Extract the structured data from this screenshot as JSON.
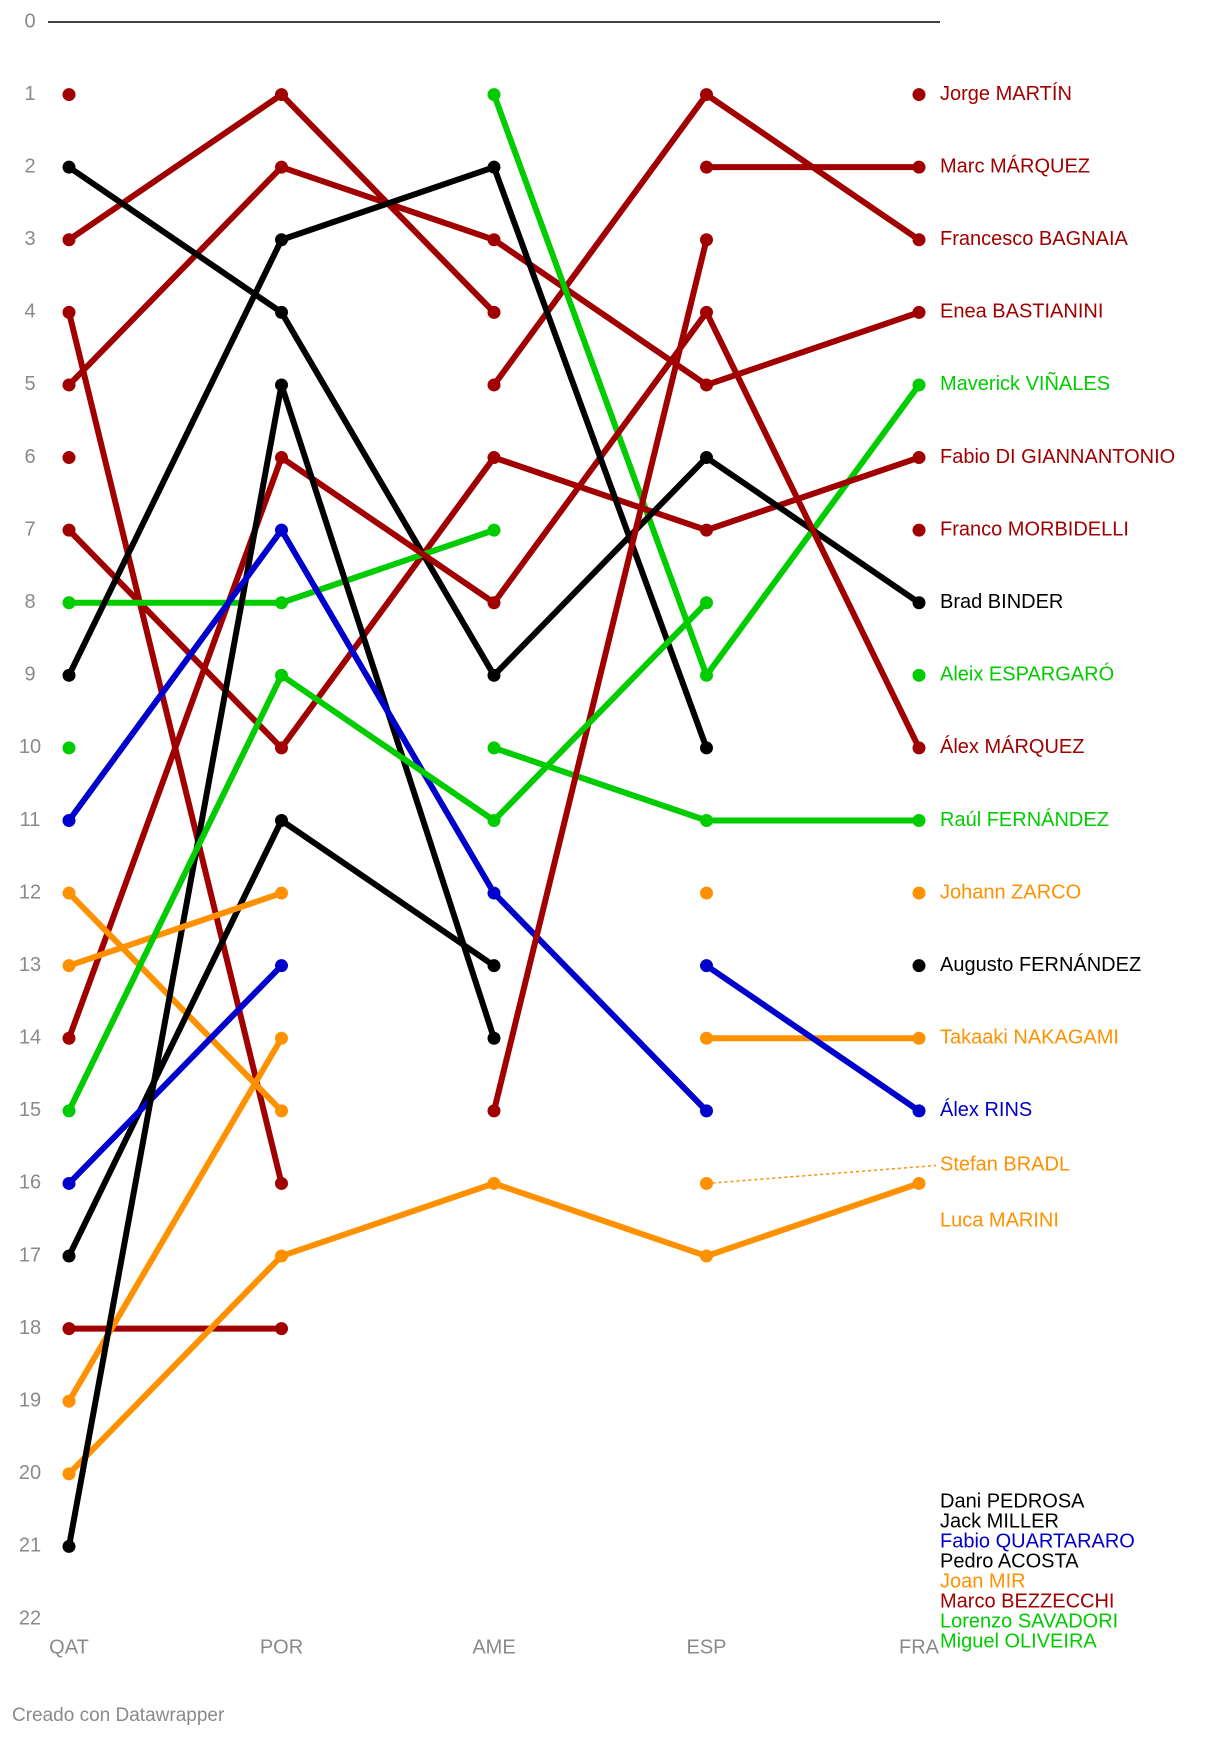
{
  "chart_data": {
    "type": "bump",
    "categories": [
      "QAT",
      "POR",
      "AME",
      "ESP",
      "FRA"
    ],
    "ylim": [
      0,
      22
    ],
    "yticks": [
      0,
      1,
      2,
      3,
      4,
      5,
      6,
      7,
      8,
      9,
      10,
      11,
      12,
      13,
      14,
      15,
      16,
      17,
      18,
      19,
      20,
      21,
      22
    ],
    "series": [
      {
        "name": "Jorge MARTÍN",
        "color": "#a00000",
        "values": [
          3,
          1,
          4,
          null,
          1
        ]
      },
      {
        "name": "Marc MÁRQUEZ",
        "color": "#a00000",
        "values": [
          4,
          16,
          null,
          2,
          2
        ]
      },
      {
        "name": "Francesco BAGNAIA",
        "color": "#a00000",
        "values": [
          1,
          null,
          5,
          1,
          3
        ]
      },
      {
        "name": "Enea BASTIANINI",
        "color": "#a00000",
        "values": [
          5,
          2,
          3,
          5,
          4
        ]
      },
      {
        "name": "Maverick VIÑALES",
        "color": "#00cc00",
        "values": [
          10,
          null,
          1,
          9,
          5
        ]
      },
      {
        "name": "Fabio DI GIANNANTONIO",
        "color": "#a00000",
        "values": [
          7,
          10,
          6,
          7,
          6
        ]
      },
      {
        "name": "Franco MORBIDELLI",
        "color": "#a00000",
        "values": [
          18,
          18,
          null,
          null,
          7
        ]
      },
      {
        "name": "Brad BINDER",
        "color": "#000000",
        "values": [
          2,
          4,
          9,
          6,
          8
        ]
      },
      {
        "name": "Aleix ESPARGARÓ",
        "color": "#00cc00",
        "values": [
          8,
          8,
          7,
          null,
          9
        ]
      },
      {
        "name": "Álex MÁRQUEZ",
        "color": "#a00000",
        "values": [
          14,
          6,
          8,
          4,
          10
        ]
      },
      {
        "name": "Raúl FERNÁNDEZ",
        "color": "#00cc00",
        "values": [
          null,
          null,
          10,
          11,
          11
        ]
      },
      {
        "name": "Johann ZARCO",
        "color": "#ff9100",
        "values": [
          12,
          15,
          null,
          null,
          12
        ]
      },
      {
        "name": "Augusto FERNÁNDEZ",
        "color": "#000000",
        "values": [
          17,
          11,
          13,
          null,
          13
        ]
      },
      {
        "name": "Takaaki NAKAGAMI",
        "color": "#ff9100",
        "values": [
          19,
          14,
          null,
          14,
          14
        ]
      },
      {
        "name": "Álex RINS",
        "color": "#0000cc",
        "values": [
          16,
          13,
          null,
          13,
          15
        ]
      },
      {
        "name": "Stefan BRADL",
        "color": "#ff9100",
        "values": [
          null,
          null,
          null,
          16,
          null
        ]
      },
      {
        "name": "Luca MARINI",
        "color": "#ff9100",
        "values": [
          20,
          17,
          16,
          17,
          16
        ]
      },
      {
        "name": "Dani PEDROSA",
        "color": "#000000",
        "values": [
          null,
          null,
          null,
          null,
          null
        ]
      },
      {
        "name": "Jack MILLER",
        "color": "#000000",
        "values": [
          21,
          5,
          14,
          null,
          null
        ]
      },
      {
        "name": "Fabio QUARTARARO",
        "color": "#0000cc",
        "values": [
          11,
          7,
          12,
          15,
          null
        ]
      },
      {
        "name": "Pedro ACOSTA",
        "color": "#000000",
        "values": [
          9,
          3,
          2,
          10,
          null
        ]
      },
      {
        "name": "Joan MIR",
        "color": "#ff9100",
        "values": [
          13,
          12,
          null,
          12,
          null
        ]
      },
      {
        "name": "Marco BEZZECCHI",
        "color": "#a00000",
        "values": [
          6,
          null,
          15,
          3,
          null
        ]
      },
      {
        "name": "Lorenzo SAVADORI",
        "color": "#00cc00",
        "values": [
          null,
          null,
          null,
          null,
          null
        ]
      },
      {
        "name": "Miguel OLIVEIRA",
        "color": "#00cc00",
        "values": [
          15,
          9,
          11,
          8,
          null
        ]
      }
    ],
    "credit": "Creado con Datawrapper"
  }
}
